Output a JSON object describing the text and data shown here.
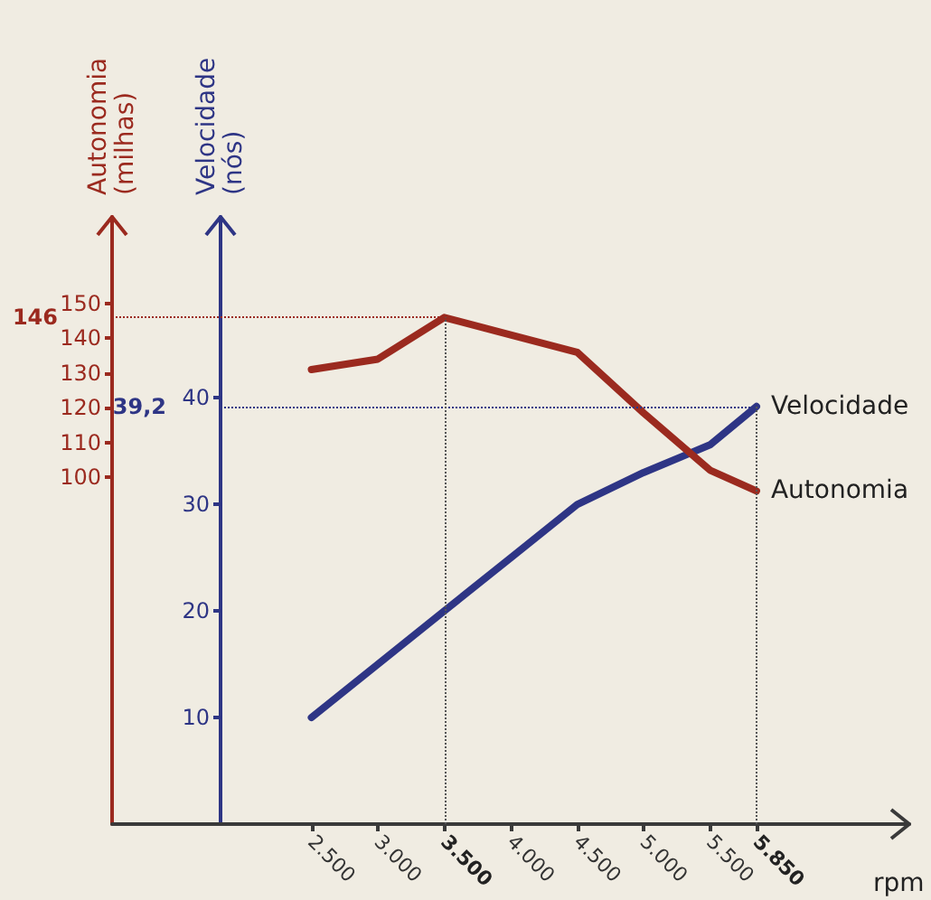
{
  "chart_data": {
    "type": "line",
    "xlabel": "rpm",
    "ylabel": "Autonomia\n(milhas)",
    "y2label": "Velocidade\n(nós)",
    "x": [
      2500,
      3000,
      3500,
      4000,
      4500,
      5000,
      5500,
      5850
    ],
    "xlim": [
      1000,
      7000
    ],
    "xticks": [
      {
        "value": 2500,
        "label": "2.500"
      },
      {
        "value": 3000,
        "label": "3.000"
      },
      {
        "value": 3500,
        "label": "3.500"
      },
      {
        "value": 4000,
        "label": "4.000"
      },
      {
        "value": 4500,
        "label": "4.500"
      },
      {
        "value": 5000,
        "label": "5.000"
      },
      {
        "value": 5500,
        "label": "5.500"
      },
      {
        "value": 5850,
        "label": "5.850"
      }
    ],
    "ylim": [
      0,
      175
    ],
    "yticks": [
      100,
      110,
      120,
      130,
      140,
      150
    ],
    "y2lim": [
      0,
      57
    ],
    "y2ticks": [
      10,
      20,
      30,
      40
    ],
    "series": [
      {
        "name": "Velocidade",
        "color": "#2e3585",
        "axis": "y2",
        "values": [
          10,
          15,
          20,
          25,
          30,
          33,
          35.6,
          39.2
        ]
      },
      {
        "name": "Autonomia",
        "color": "#9b2a1f",
        "values": [
          131,
          134,
          146,
          141,
          136,
          118.5,
          102,
          96
        ]
      }
    ],
    "ref_lines": [
      {
        "axis": "y",
        "value": 146,
        "label": "146",
        "color": "#9b2a1f",
        "line_style": "dotted"
      },
      {
        "axis": "y2",
        "value": 39.2,
        "label": "39,2",
        "color": "#2e3585",
        "line_style": "dotted"
      },
      {
        "axis": "x",
        "value": 3500,
        "color": "#555555",
        "line_style": "dotted"
      },
      {
        "axis": "x",
        "value": 5850,
        "color": "#555555",
        "line_style": "dotted"
      }
    ],
    "grid": false,
    "legend": false,
    "marker": "none",
    "line_style": "solid"
  }
}
